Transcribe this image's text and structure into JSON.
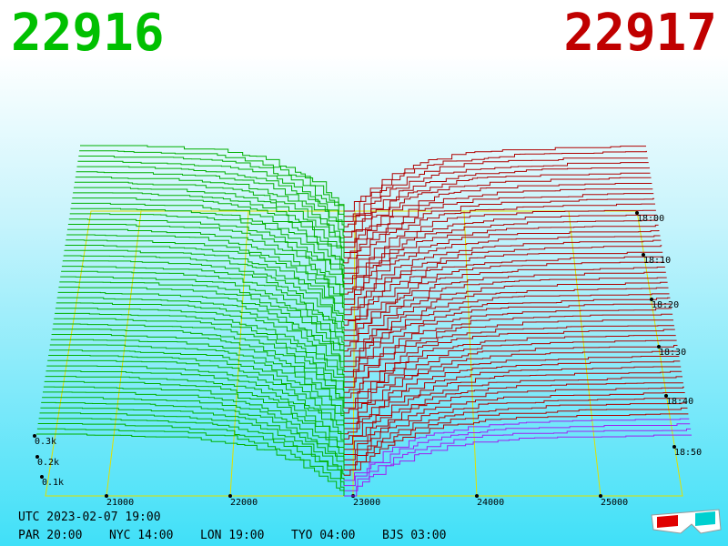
{
  "header": {
    "bid": "22916",
    "ask": "22917"
  },
  "price_axis": [
    "21000",
    "22000",
    "23000",
    "24000",
    "25000"
  ],
  "depth_axis": [
    "0.3k",
    "0.2k",
    "0.1k"
  ],
  "time_axis": [
    "18:00",
    "18:10",
    "18:20",
    "18:30",
    "18:40",
    "18:50"
  ],
  "footer": {
    "utc": "UTC 2023-02-07 19:00",
    "zones": [
      "PAR 20:00",
      "NYC 14:00",
      "LON 19:00",
      "TYO 04:00",
      "BJS 03:00"
    ]
  }
}
